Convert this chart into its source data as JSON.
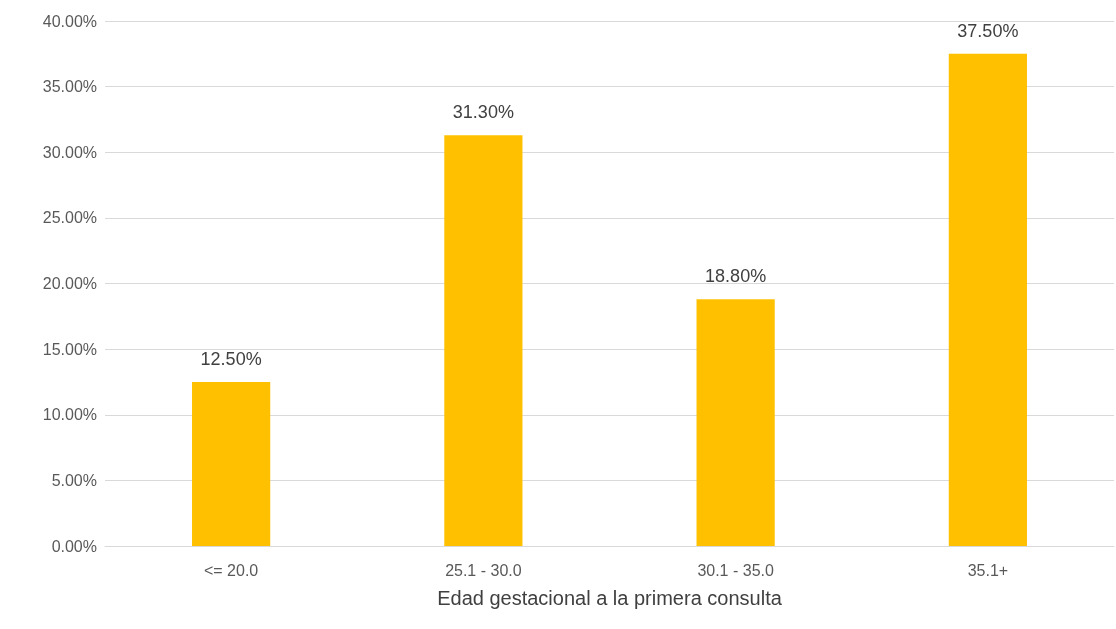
{
  "chart_data": {
    "type": "bar",
    "xlabel": "Edad gestacional a la primera consulta",
    "categories": [
      "<= 20.0",
      "25.1 - 30.0",
      "30.1 - 35.0",
      "35.1+"
    ],
    "values": [
      12.5,
      31.3,
      18.8,
      37.5
    ],
    "value_labels": [
      "12.50%",
      "31.30%",
      "18.80%",
      "37.50%"
    ],
    "color": "#ffc000",
    "ylim": [
      0,
      40
    ],
    "yticks": [
      {
        "value": 0,
        "label": "0.00%"
      },
      {
        "value": 5,
        "label": "5.00%"
      },
      {
        "value": 10,
        "label": "10.00%"
      },
      {
        "value": 15,
        "label": "15.00%"
      },
      {
        "value": 20,
        "label": "20.00%"
      },
      {
        "value": 25,
        "label": "25.00%"
      },
      {
        "value": 30,
        "label": "30.00%"
      },
      {
        "value": 35,
        "label": "35.00%"
      },
      {
        "value": 40,
        "label": "40.00%"
      }
    ],
    "grid": "y"
  }
}
